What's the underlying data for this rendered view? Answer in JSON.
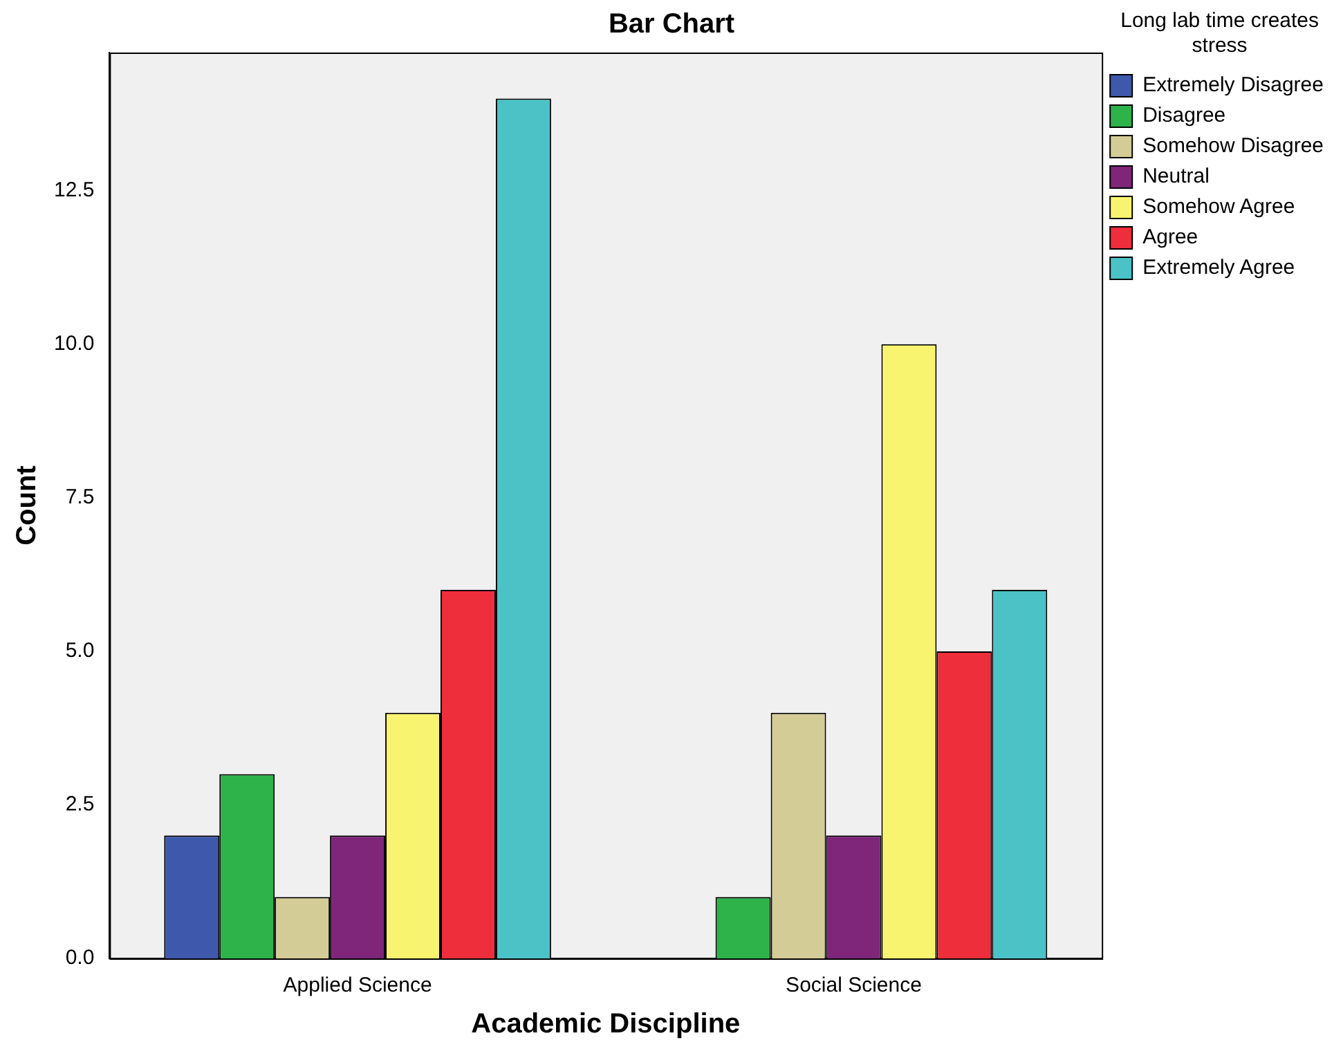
{
  "chart_data": {
    "type": "bar",
    "title": "Bar Chart",
    "xlabel": "Academic Discipline",
    "ylabel": "Count",
    "legend_title": "Long lab time creates stress",
    "legend": "right",
    "categories": [
      "Applied Science",
      "Social Science"
    ],
    "series": [
      {
        "name": "Extremely Disagree",
        "color": "#3e58ac",
        "values": [
          2,
          null
        ]
      },
      {
        "name": "Disagree",
        "color": "#2eb24a",
        "values": [
          3,
          1
        ]
      },
      {
        "name": "Somehow Disagree",
        "color": "#d4cc96",
        "values": [
          1,
          4
        ]
      },
      {
        "name": "Neutral",
        "color": "#7f267a",
        "values": [
          2,
          2
        ]
      },
      {
        "name": "Somehow Agree",
        "color": "#f8f46f",
        "values": [
          4,
          10
        ]
      },
      {
        "name": "Agree",
        "color": "#ee2e3a",
        "values": [
          6,
          5
        ]
      },
      {
        "name": "Extremely Agree",
        "color": "#4bc3c6",
        "values": [
          14,
          6
        ]
      }
    ],
    "ylim": [
      0,
      14.75
    ],
    "yticks": [
      {
        "value": 0,
        "label": "0.0"
      },
      {
        "value": 2.5,
        "label": "2.5"
      },
      {
        "value": 5,
        "label": "5.0"
      },
      {
        "value": 7.5,
        "label": "7.5"
      },
      {
        "value": 10,
        "label": "10.0"
      },
      {
        "value": 12.5,
        "label": "12.5"
      }
    ],
    "grid": false
  }
}
